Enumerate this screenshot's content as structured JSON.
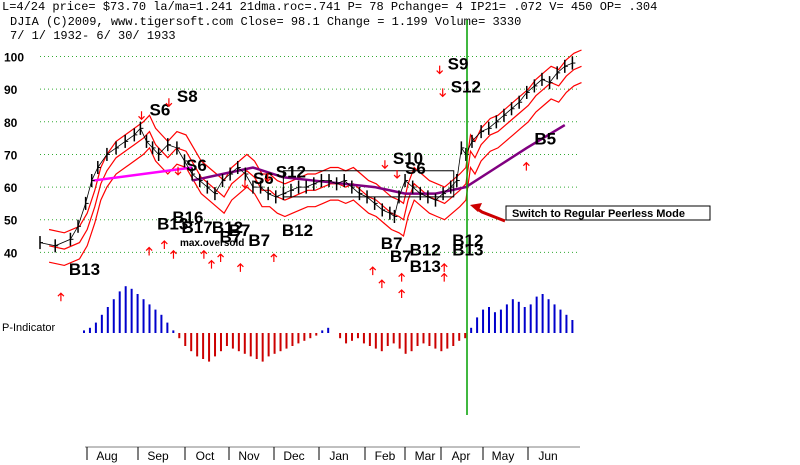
{
  "header": {
    "line1": "L=4/24  price= $73.70  la/ma=1.241 21dma.roc=.741 P=  78 Pchange=  4 IP21= .072 V= 450 OP= .304",
    "line2": "DJIA    (C)2009, www.tigersoft.com    Close=  98.1  Change = 1.199 Volume= 3330",
    "line3": "7/ 1/ 1932- 6/ 30/ 1933"
  },
  "annotation_box": "Switch to Regular Peerless Mode",
  "indicator_label": "P-Indicator",
  "colors": {
    "price_bar": "#000000",
    "band": "#ff0000",
    "ma_long": "#800080",
    "magenta_line": "#ff00ff",
    "vertical_line": "#00a000",
    "p_positive": "#0000cc",
    "p_negative": "#cc0000",
    "arrow_red": "#ff0000"
  },
  "chart_data": {
    "type": "line",
    "title": "DJIA 7/1/1932 - 6/30/1933",
    "ylim": [
      30,
      102
    ],
    "y_ticks": [
      40,
      50,
      60,
      70,
      80,
      90,
      100
    ],
    "x_months": [
      "Aug",
      "Sep",
      "Oct",
      "Nov",
      "Dec",
      "Jan",
      "Feb",
      "Mar",
      "Apr",
      "May",
      "Jun"
    ],
    "price_series": [
      [
        0,
        43
      ],
      [
        10,
        42
      ],
      [
        20,
        44
      ],
      [
        25,
        48
      ],
      [
        30,
        55
      ],
      [
        34,
        62
      ],
      [
        38,
        66
      ],
      [
        44,
        70
      ],
      [
        50,
        72
      ],
      [
        56,
        74
      ],
      [
        62,
        76
      ],
      [
        66,
        78
      ],
      [
        70,
        74
      ],
      [
        74,
        72
      ],
      [
        78,
        70
      ],
      [
        84,
        73
      ],
      [
        90,
        72
      ],
      [
        95,
        68
      ],
      [
        100,
        64
      ],
      [
        105,
        62
      ],
      [
        110,
        60
      ],
      [
        115,
        58
      ],
      [
        120,
        62
      ],
      [
        125,
        64
      ],
      [
        130,
        66
      ],
      [
        135,
        64
      ],
      [
        140,
        60
      ],
      [
        145,
        60
      ],
      [
        150,
        58
      ],
      [
        155,
        57
      ],
      [
        160,
        58
      ],
      [
        165,
        59
      ],
      [
        170,
        60
      ],
      [
        175,
        60
      ],
      [
        180,
        61
      ],
      [
        185,
        62
      ],
      [
        190,
        62
      ],
      [
        195,
        61
      ],
      [
        200,
        62
      ],
      [
        205,
        60
      ],
      [
        210,
        58
      ],
      [
        215,
        57
      ],
      [
        220,
        55
      ],
      [
        225,
        53
      ],
      [
        230,
        52
      ],
      [
        233,
        51
      ],
      [
        236,
        57
      ],
      [
        240,
        62
      ],
      [
        245,
        60
      ],
      [
        250,
        58
      ],
      [
        255,
        57
      ],
      [
        260,
        56
      ],
      [
        265,
        58
      ],
      [
        270,
        60
      ],
      [
        274,
        62
      ],
      [
        277,
        72
      ],
      [
        280,
        70
      ],
      [
        284,
        74
      ],
      [
        290,
        77
      ],
      [
        295,
        78
      ],
      [
        300,
        80
      ],
      [
        305,
        82
      ],
      [
        310,
        84
      ],
      [
        315,
        86
      ],
      [
        320,
        89
      ],
      [
        325,
        91
      ],
      [
        330,
        93
      ],
      [
        335,
        92
      ],
      [
        340,
        95
      ],
      [
        345,
        97
      ],
      [
        350,
        98
      ]
    ],
    "p_indicator": [
      0,
      2,
      4,
      8,
      14,
      20,
      26,
      32,
      36,
      34,
      30,
      26,
      22,
      18,
      14,
      8,
      2,
      -4,
      -10,
      -14,
      -18,
      -20,
      -22,
      -18,
      -14,
      -10,
      -12,
      -14,
      -16,
      -18,
      -20,
      -22,
      -18,
      -16,
      -14,
      -12,
      -10,
      -8,
      -6,
      -4,
      -2,
      2,
      4,
      0,
      -4,
      -8,
      -6,
      -4,
      -8,
      -10,
      -12,
      -14,
      -10,
      -8,
      -12,
      -16,
      -14,
      -10,
      -8,
      -10,
      -12,
      -14,
      -12,
      -10,
      -6,
      -4,
      4,
      12,
      18,
      20,
      16,
      18,
      22,
      26,
      24,
      20,
      22,
      28,
      30,
      26,
      22,
      18,
      14,
      10
    ],
    "signals": [
      {
        "text": "S6",
        "x": 72,
        "y": 82
      },
      {
        "text": "S8",
        "x": 90,
        "y": 86
      },
      {
        "text": "S6",
        "x": 96,
        "y": 65
      },
      {
        "text": "S6",
        "x": 140,
        "y": 61
      },
      {
        "text": "S12",
        "x": 155,
        "y": 63
      },
      {
        "text": "S10",
        "x": 232,
        "y": 67
      },
      {
        "text": "S6",
        "x": 240,
        "y": 64
      },
      {
        "text": "S9",
        "x": 268,
        "y": 96
      },
      {
        "text": "S12",
        "x": 270,
        "y": 89
      },
      {
        "text": "B13",
        "x": 19,
        "y": 33
      },
      {
        "text": "B13",
        "x": 77,
        "y": 47
      },
      {
        "text": "B16",
        "x": 87,
        "y": 49
      },
      {
        "text": "B17",
        "x": 93,
        "y": 46
      },
      {
        "text": "B12",
        "x": 113,
        "y": 46
      },
      {
        "text": "B7",
        "x": 124,
        "y": 45
      },
      {
        "text": "B7",
        "x": 118,
        "y": 43
      },
      {
        "text": "B7",
        "x": 137,
        "y": 42
      },
      {
        "text": "B12",
        "x": 159,
        "y": 45
      },
      {
        "text": "B7",
        "x": 224,
        "y": 41
      },
      {
        "text": "B7",
        "x": 230,
        "y": 37
      },
      {
        "text": "B12",
        "x": 243,
        "y": 39
      },
      {
        "text": "B13",
        "x": 243,
        "y": 34
      },
      {
        "text": "B12",
        "x": 271,
        "y": 42
      },
      {
        "text": "B13",
        "x": 271,
        "y": 39
      },
      {
        "text": "B5",
        "x": 325,
        "y": 73
      }
    ],
    "small_labels": [
      {
        "text": "max.oversold",
        "x": 92,
        "y": 42
      }
    ]
  }
}
